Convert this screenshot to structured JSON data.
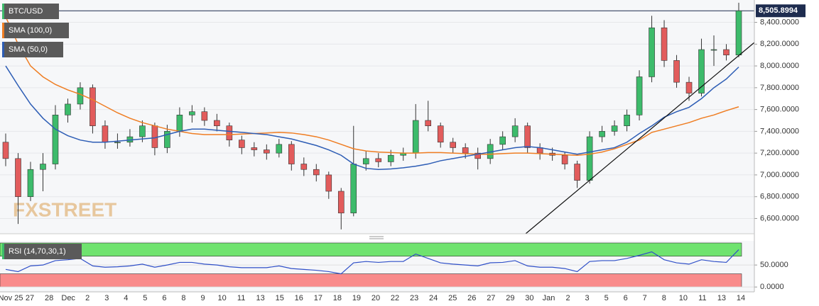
{
  "chart_data": {
    "type": "candlestick",
    "symbol": "BTC/USD",
    "watermark": "FXSTREET",
    "up_color": "#3dbb6b",
    "down_color": "#e25c5c",
    "open": [
      7300,
      7150,
      6800,
      7050,
      7100,
      7550,
      7650,
      7800,
      7450,
      7300,
      7300,
      7350,
      7450,
      7250,
      7400,
      7550,
      7580,
      7500,
      7450,
      7320,
      7250,
      7230,
      7200,
      7280,
      7100,
      7050,
      7000,
      6850,
      6650,
      7100,
      7150,
      7120,
      7180,
      7200,
      7500,
      7450,
      7300,
      7250,
      7200,
      7150,
      7280,
      7350,
      7450,
      7250,
      7200,
      7180,
      7100,
      6950,
      7350,
      7400,
      7450,
      7550,
      7900,
      8350,
      8050,
      7850,
      7750,
      8150,
      8150,
      8100
    ],
    "high": [
      7380,
      7200,
      7120,
      7200,
      7640,
      7700,
      7850,
      7830,
      7500,
      7380,
      7420,
      7500,
      7480,
      7460,
      7620,
      7640,
      7620,
      7560,
      7480,
      7360,
      7300,
      7280,
      7330,
      7310,
      7160,
      7100,
      7030,
      6880,
      7450,
      7220,
      7200,
      7230,
      7250,
      7650,
      7680,
      7480,
      7340,
      7290,
      7250,
      7330,
      7400,
      7520,
      7480,
      7290,
      7250,
      7210,
      7130,
      7400,
      7450,
      7500,
      7600,
      7960,
      8460,
      8420,
      8100,
      7900,
      8250,
      8280,
      8200,
      8580
    ],
    "low": [
      7080,
      6550,
      6760,
      6850,
      7050,
      7480,
      7600,
      7380,
      7240,
      7240,
      7260,
      7300,
      7180,
      7200,
      7350,
      7480,
      7450,
      7400,
      7260,
      7190,
      7170,
      7140,
      7160,
      7040,
      6990,
      6940,
      6780,
      6500,
      6620,
      7040,
      7070,
      7080,
      7130,
      7150,
      7400,
      7250,
      7200,
      7150,
      7050,
      7100,
      7230,
      7300,
      7200,
      7140,
      7130,
      7050,
      6880,
      6920,
      7300,
      7360,
      7400,
      7500,
      7850,
      7990,
      7800,
      7680,
      7720,
      8000,
      8050,
      8080
    ],
    "close": [
      7150,
      6800,
      7050,
      7100,
      7550,
      7650,
      7800,
      7450,
      7300,
      7300,
      7350,
      7450,
      7250,
      7400,
      7550,
      7580,
      7500,
      7450,
      7320,
      7250,
      7230,
      7200,
      7280,
      7100,
      7050,
      7000,
      6850,
      6650,
      7100,
      7150,
      7120,
      7180,
      7200,
      7500,
      7450,
      7300,
      7250,
      7200,
      7150,
      7280,
      7350,
      7450,
      7250,
      7200,
      7180,
      7100,
      6950,
      7350,
      7400,
      7450,
      7550,
      7900,
      8350,
      8050,
      7850,
      7750,
      8150,
      8150,
      8100,
      8506
    ],
    "series": [
      {
        "name": "SMA (100,0)",
        "color": "#ef7d22",
        "values": [
          8450,
          8200,
          8000,
          7900,
          7830,
          7780,
          7740,
          7690,
          7630,
          7570,
          7520,
          7480,
          7450,
          7420,
          7400,
          7380,
          7370,
          7370,
          7370,
          7375,
          7380,
          7385,
          7390,
          7385,
          7370,
          7350,
          7320,
          7280,
          7240,
          7220,
          7210,
          7205,
          7200,
          7200,
          7205,
          7205,
          7200,
          7195,
          7190,
          7190,
          7195,
          7200,
          7200,
          7195,
          7190,
          7185,
          7180,
          7190,
          7210,
          7240,
          7280,
          7320,
          7390,
          7420,
          7450,
          7480,
          7520,
          7550,
          7590,
          7625
        ]
      },
      {
        "name": "SMA (50,0)",
        "color": "#2d5db5",
        "values": [
          8000,
          7820,
          7650,
          7520,
          7420,
          7360,
          7320,
          7300,
          7300,
          7310,
          7320,
          7330,
          7340,
          7370,
          7400,
          7420,
          7420,
          7410,
          7400,
          7390,
          7380,
          7370,
          7350,
          7330,
          7300,
          7270,
          7230,
          7180,
          7100,
          7060,
          7050,
          7055,
          7065,
          7080,
          7100,
          7130,
          7150,
          7170,
          7190,
          7210,
          7230,
          7250,
          7260,
          7250,
          7230,
          7210,
          7190,
          7210,
          7230,
          7250,
          7300,
          7380,
          7450,
          7530,
          7580,
          7620,
          7700,
          7800,
          7880,
          7990
        ]
      }
    ],
    "last_price": {
      "value": 8505.8994,
      "label": "8,505.8994"
    },
    "ylim": [
      6460,
      8605
    ],
    "yticks": [
      {
        "value": 6600,
        "label": "6,600.0000"
      },
      {
        "value": 6800,
        "label": "6,800.0000"
      },
      {
        "value": 7000,
        "label": "7,000.0000"
      },
      {
        "value": 7200,
        "label": "7,200.0000"
      },
      {
        "value": 7400,
        "label": "7,400.0000"
      },
      {
        "value": 7600,
        "label": "7,600.0000"
      },
      {
        "value": 7800,
        "label": "7,800.0000"
      },
      {
        "value": 8000,
        "label": "8,000.0000"
      },
      {
        "value": 8200,
        "label": "8,200.0000"
      },
      {
        "value": 8400,
        "label": "8,400.0000"
      }
    ],
    "xtick_labels": [
      "Nov 25",
      "27",
      "28",
      "Dec",
      "2",
      "3",
      "4",
      "5",
      "6",
      "8",
      "9",
      "10",
      "11",
      "13",
      "15",
      "16",
      "17",
      "18",
      "19",
      "20",
      "22",
      "23",
      "24",
      "25",
      "26",
      "27",
      "29",
      "30",
      "Jan",
      "2",
      "3",
      "5",
      "6",
      "7",
      "8",
      "10",
      "11",
      "13",
      "14"
    ],
    "rsi": {
      "name": "RSI (14,70,30,1)",
      "color": "#2f4fc8",
      "overbought": 70,
      "oversold": 30,
      "ylim": [
        -11,
        105
      ],
      "yticks": [
        {
          "value": 0,
          "label": "0.0000"
        },
        {
          "value": 50,
          "label": "50.0000"
        }
      ],
      "values": [
        40,
        35,
        48,
        50,
        60,
        62,
        65,
        48,
        45,
        46,
        48,
        52,
        45,
        50,
        56,
        56,
        52,
        50,
        46,
        44,
        44,
        44,
        48,
        42,
        40,
        38,
        35,
        30,
        55,
        58,
        56,
        58,
        58,
        75,
        65,
        55,
        52,
        50,
        48,
        55,
        56,
        60,
        48,
        45,
        45,
        42,
        35,
        58,
        60,
        60,
        65,
        72,
        80,
        62,
        55,
        52,
        62,
        58,
        56,
        85
      ]
    }
  }
}
